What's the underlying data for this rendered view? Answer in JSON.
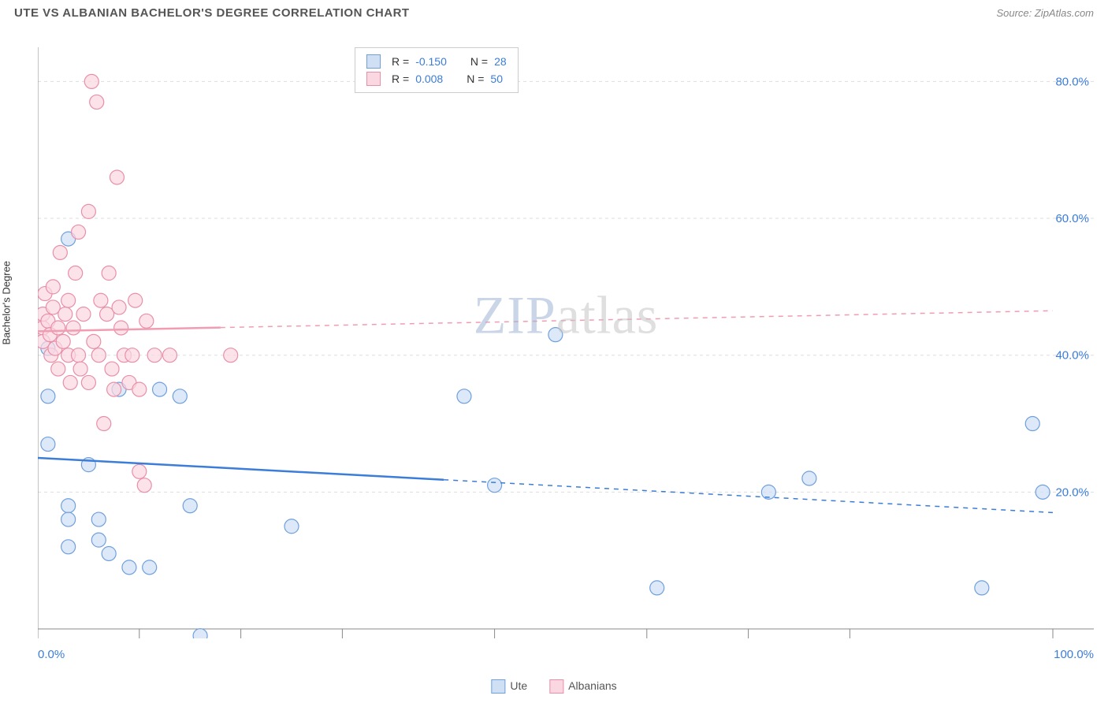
{
  "title": "UTE VS ALBANIAN BACHELOR'S DEGREE CORRELATION CHART",
  "source": "Source: ZipAtlas.com",
  "ylabel": "Bachelor's Degree",
  "watermark_zip": "ZIP",
  "watermark_atlas": "atlas",
  "chart": {
    "type": "scatter",
    "background_color": "#ffffff",
    "grid_color": "#dddddd",
    "axis_color": "#888888",
    "tick_label_color": "#3b7dd8",
    "tick_fontsize": 15,
    "xlim": [
      0,
      100
    ],
    "ylim": [
      0,
      85
    ],
    "y_ticks": [
      20,
      40,
      60,
      80
    ],
    "y_tick_labels": [
      "20.0%",
      "40.0%",
      "60.0%",
      "80.0%"
    ],
    "x_tick_labels_shown": [
      "0.0%",
      "100.0%"
    ],
    "marker_radius": 9,
    "marker_stroke_width": 1.2,
    "trend_line_width_solid": 2.5,
    "trend_line_width_dash": 1.5,
    "series": [
      {
        "name": "Ute",
        "fill": "#cfe0f5",
        "stroke": "#6fa0dd",
        "R": "-0.150",
        "N": "28",
        "trend": {
          "x1": 0,
          "y1": 25,
          "x2": 100,
          "y2": 17,
          "solid_until_x": 40,
          "color": "#3b7dd8"
        },
        "points": [
          [
            1,
            41
          ],
          [
            1,
            34
          ],
          [
            1,
            27
          ],
          [
            3,
            57
          ],
          [
            3,
            18
          ],
          [
            3,
            16
          ],
          [
            3,
            12
          ],
          [
            5,
            24
          ],
          [
            6,
            13
          ],
          [
            6,
            16
          ],
          [
            7,
            11
          ],
          [
            8,
            35
          ],
          [
            9,
            9
          ],
          [
            11,
            9
          ],
          [
            12,
            35
          ],
          [
            14,
            34
          ],
          [
            15,
            18
          ],
          [
            16,
            -1
          ],
          [
            25,
            15
          ],
          [
            42,
            34
          ],
          [
            45,
            21
          ],
          [
            51,
            43
          ],
          [
            61,
            6
          ],
          [
            72,
            20
          ],
          [
            76,
            22
          ],
          [
            93,
            6
          ],
          [
            98,
            30
          ],
          [
            99,
            20
          ]
        ]
      },
      {
        "name": "Albanians",
        "fill": "#fbd7e1",
        "stroke": "#e98fa8",
        "R": "0.008",
        "N": "50",
        "trend": {
          "x1": 0,
          "y1": 43.5,
          "x2": 100,
          "y2": 46.5,
          "solid_until_x": 18,
          "color": "#f29cb2"
        },
        "points": [
          [
            0.5,
            44
          ],
          [
            0.5,
            46
          ],
          [
            0.5,
            42
          ],
          [
            0.7,
            49
          ],
          [
            1,
            45
          ],
          [
            1.2,
            43
          ],
          [
            1.3,
            40
          ],
          [
            1.5,
            47
          ],
          [
            1.5,
            50
          ],
          [
            1.7,
            41
          ],
          [
            2,
            44
          ],
          [
            2,
            38
          ],
          [
            2.2,
            55
          ],
          [
            2.5,
            42
          ],
          [
            2.7,
            46
          ],
          [
            3,
            40
          ],
          [
            3,
            48
          ],
          [
            3.2,
            36
          ],
          [
            3.5,
            44
          ],
          [
            3.7,
            52
          ],
          [
            4,
            58
          ],
          [
            4,
            40
          ],
          [
            4.2,
            38
          ],
          [
            4.5,
            46
          ],
          [
            5,
            61
          ],
          [
            5,
            36
          ],
          [
            5.3,
            80
          ],
          [
            5.5,
            42
          ],
          [
            5.8,
            77
          ],
          [
            6,
            40
          ],
          [
            6.2,
            48
          ],
          [
            6.5,
            30
          ],
          [
            6.8,
            46
          ],
          [
            7,
            52
          ],
          [
            7.3,
            38
          ],
          [
            7.5,
            35
          ],
          [
            7.8,
            66
          ],
          [
            8,
            47
          ],
          [
            8.2,
            44
          ],
          [
            8.5,
            40
          ],
          [
            9,
            36
          ],
          [
            9.3,
            40
          ],
          [
            9.6,
            48
          ],
          [
            10,
            23
          ],
          [
            10,
            35
          ],
          [
            10.5,
            21
          ],
          [
            10.7,
            45
          ],
          [
            11.5,
            40
          ],
          [
            13,
            40
          ],
          [
            19,
            40
          ]
        ]
      }
    ]
  },
  "legend_bottom": [
    {
      "label": "Ute",
      "fill": "#cfe0f5",
      "stroke": "#6fa0dd"
    },
    {
      "label": "Albanians",
      "fill": "#fbd7e1",
      "stroke": "#e98fa8"
    }
  ]
}
